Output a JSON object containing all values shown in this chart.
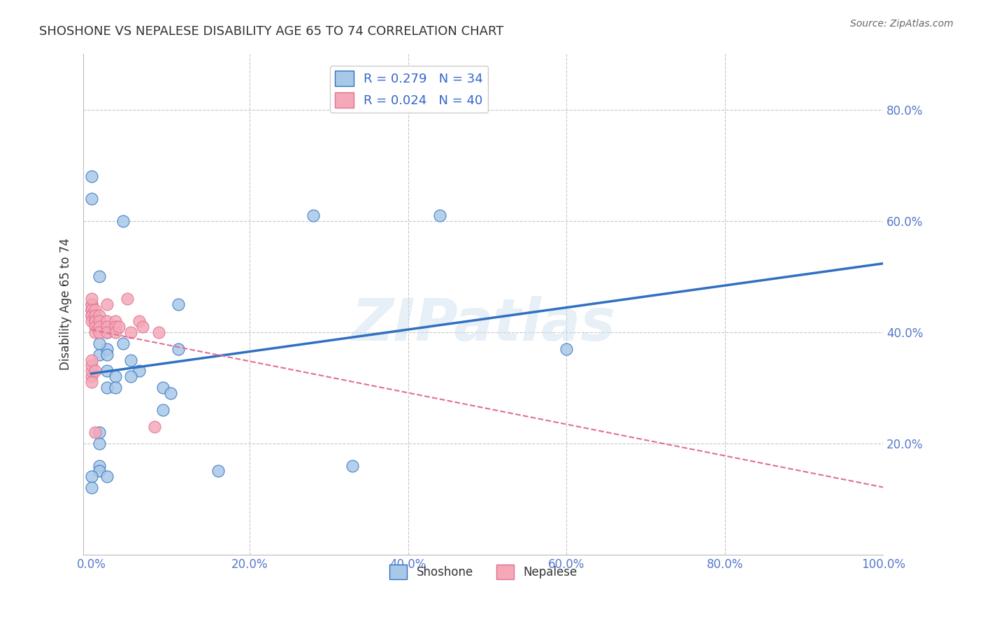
{
  "title": "SHOSHONE VS NEPALESE DISABILITY AGE 65 TO 74 CORRELATION CHART",
  "source_text": "Source: ZipAtlas.com",
  "xlabel": "",
  "ylabel": "Disability Age 65 to 74",
  "xlim": [
    -0.01,
    1.0
  ],
  "ylim": [
    0.0,
    0.9
  ],
  "xticks": [
    0.0,
    0.2,
    0.4,
    0.6,
    0.8,
    1.0
  ],
  "yticks": [
    0.2,
    0.4,
    0.6,
    0.8
  ],
  "xtick_labels": [
    "0.0%",
    "20.0%",
    "40.0%",
    "60.0%",
    "80.0%",
    "100.0%"
  ],
  "ytick_labels": [
    "20.0%",
    "40.0%",
    "60.0%",
    "80.0%"
  ],
  "shoshone_x": [
    0.01,
    0.02,
    0.0,
    0.0,
    0.01,
    0.02,
    0.01,
    0.02,
    0.02,
    0.03,
    0.04,
    0.05,
    0.02,
    0.06,
    0.09,
    0.09,
    0.11,
    0.28,
    0.01,
    0.01,
    0.01,
    0.02,
    0.03,
    0.05,
    0.1,
    0.0,
    0.0,
    0.01,
    0.11,
    0.6,
    0.16,
    0.33,
    0.44,
    0.04
  ],
  "shoshone_y": [
    0.36,
    0.37,
    0.68,
    0.64,
    0.5,
    0.4,
    0.38,
    0.36,
    0.33,
    0.32,
    0.38,
    0.35,
    0.3,
    0.33,
    0.3,
    0.26,
    0.45,
    0.61,
    0.2,
    0.16,
    0.15,
    0.14,
    0.3,
    0.32,
    0.29,
    0.14,
    0.12,
    0.22,
    0.37,
    0.37,
    0.15,
    0.16,
    0.61,
    0.6
  ],
  "nepalese_x": [
    0.0,
    0.0,
    0.0,
    0.0,
    0.0,
    0.0,
    0.0,
    0.0,
    0.0,
    0.005,
    0.005,
    0.005,
    0.005,
    0.005,
    0.005,
    0.01,
    0.01,
    0.01,
    0.01,
    0.02,
    0.02,
    0.02,
    0.03,
    0.03,
    0.03,
    0.035,
    0.05,
    0.06,
    0.065,
    0.085,
    0.0,
    0.0,
    0.0,
    0.0,
    0.0,
    0.005,
    0.005,
    0.08,
    0.02,
    0.045
  ],
  "nepalese_y": [
    0.44,
    0.44,
    0.45,
    0.45,
    0.46,
    0.44,
    0.43,
    0.43,
    0.42,
    0.44,
    0.43,
    0.42,
    0.42,
    0.41,
    0.4,
    0.43,
    0.42,
    0.41,
    0.4,
    0.42,
    0.41,
    0.4,
    0.42,
    0.41,
    0.4,
    0.41,
    0.4,
    0.42,
    0.41,
    0.4,
    0.32,
    0.31,
    0.33,
    0.34,
    0.35,
    0.33,
    0.22,
    0.23,
    0.45,
    0.46
  ],
  "shoshone_color": "#a8c8e8",
  "nepalese_color": "#f4a8b8",
  "shoshone_line_color": "#3070c0",
  "nepalese_line_color": "#e07090",
  "shoshone_R": 0.279,
  "shoshone_N": 34,
  "nepalese_R": 0.024,
  "nepalese_N": 40,
  "legend_label_shoshone": "Shoshone",
  "legend_label_nepalese": "Nepalese",
  "watermark": "ZIPatlas",
  "background_color": "#ffffff",
  "grid_color": "#c8c8c8",
  "title_color": "#333333",
  "axis_color": "#5577cc",
  "legend_text_color": "#3366cc"
}
